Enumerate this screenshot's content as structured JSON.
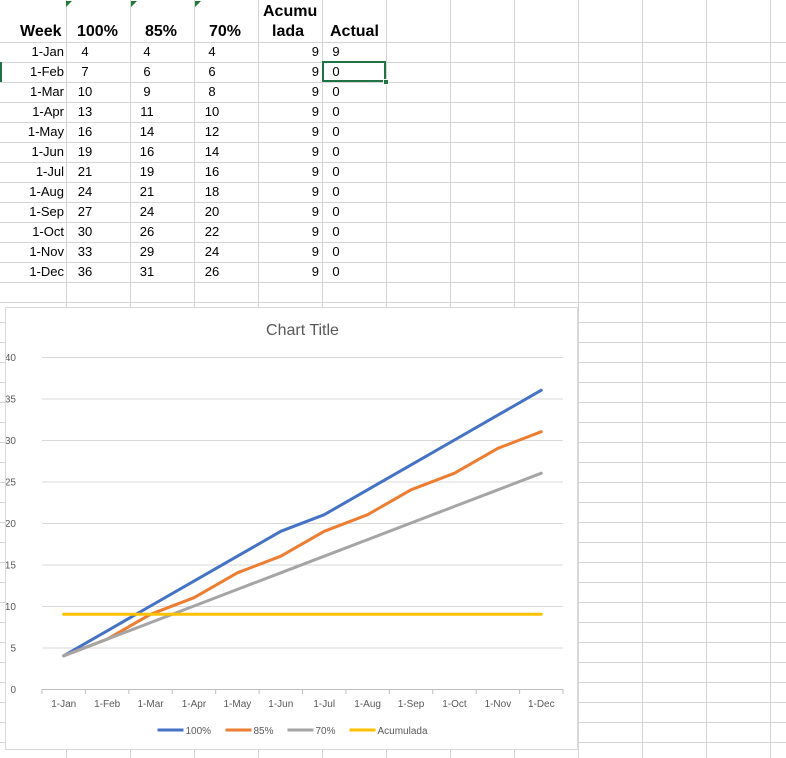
{
  "sheet": {
    "headers": {
      "week": "Week",
      "p100": "100%",
      "p85": "85%",
      "p70": "70%",
      "acumulada_line1": "Acumu",
      "acumulada_line2": "lada",
      "actual": "Actual"
    },
    "rows": [
      {
        "week": "1-Jan",
        "p100": "4",
        "p85": "4",
        "p70": "4",
        "acumulada": "9",
        "actual": "9"
      },
      {
        "week": "1-Feb",
        "p100": "7",
        "p85": "6",
        "p70": "6",
        "acumulada": "9",
        "actual": "0"
      },
      {
        "week": "1-Mar",
        "p100": "10",
        "p85": "9",
        "p70": "8",
        "acumulada": "9",
        "actual": "0"
      },
      {
        "week": "1-Apr",
        "p100": "13",
        "p85": "11",
        "p70": "10",
        "acumulada": "9",
        "actual": "0"
      },
      {
        "week": "1-May",
        "p100": "16",
        "p85": "14",
        "p70": "12",
        "acumulada": "9",
        "actual": "0"
      },
      {
        "week": "1-Jun",
        "p100": "19",
        "p85": "16",
        "p70": "14",
        "acumulada": "9",
        "actual": "0"
      },
      {
        "week": "1-Jul",
        "p100": "21",
        "p85": "19",
        "p70": "16",
        "acumulada": "9",
        "actual": "0"
      },
      {
        "week": "1-Aug",
        "p100": "24",
        "p85": "21",
        "p70": "18",
        "acumulada": "9",
        "actual": "0"
      },
      {
        "week": "1-Sep",
        "p100": "27",
        "p85": "24",
        "p70": "20",
        "acumulada": "9",
        "actual": "0"
      },
      {
        "week": "1-Oct",
        "p100": "30",
        "p85": "26",
        "p70": "22",
        "acumulada": "9",
        "actual": "0"
      },
      {
        "week": "1-Nov",
        "p100": "33",
        "p85": "29",
        "p70": "24",
        "acumulada": "9",
        "actual": "0"
      },
      {
        "week": "1-Dec",
        "p100": "36",
        "p85": "31",
        "p70": "26",
        "acumulada": "9",
        "actual": "0"
      }
    ]
  },
  "colors": {
    "gridline": "#d4d4d4",
    "selection": "#217346",
    "error_indicator": "#1e7b34",
    "chart_gridline": "#d9d9d9",
    "axis_text": "#595959",
    "title_text": "#595959"
  },
  "chart_data": {
    "type": "line",
    "title": "Chart Title",
    "categories": [
      "1-Jan",
      "1-Feb",
      "1-Mar",
      "1-Apr",
      "1-May",
      "1-Jun",
      "1-Jul",
      "1-Aug",
      "1-Sep",
      "1-Oct",
      "1-Nov",
      "1-Dec"
    ],
    "series": [
      {
        "name": "100%",
        "color": "#4472c4",
        "values": [
          4,
          7,
          10,
          13,
          16,
          19,
          21,
          24,
          27,
          30,
          33,
          36
        ]
      },
      {
        "name": "85%",
        "color": "#ed7d31",
        "values": [
          4,
          6,
          9,
          11,
          14,
          16,
          19,
          21,
          24,
          26,
          29,
          31
        ]
      },
      {
        "name": "70%",
        "color": "#a5a5a5",
        "values": [
          4,
          6,
          8,
          10,
          12,
          14,
          16,
          18,
          20,
          22,
          24,
          26
        ]
      },
      {
        "name": "Acumulada",
        "color": "#ffc000",
        "values": [
          9,
          9,
          9,
          9,
          9,
          9,
          9,
          9,
          9,
          9,
          9,
          9
        ]
      }
    ],
    "ylim": [
      0,
      40
    ],
    "yticks": [
      "0",
      "5",
      "10",
      "15",
      "20",
      "25",
      "30",
      "35",
      "40"
    ],
    "legend": "bottom",
    "grid": true
  }
}
